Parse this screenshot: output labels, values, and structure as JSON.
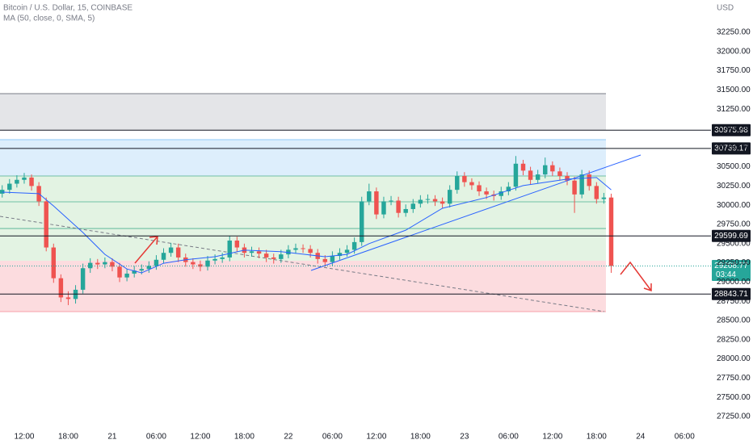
{
  "chart_data": {
    "type": "candlestick",
    "title": "Bitcoin / U.S. Dollar, 15, COINBASE",
    "indicator": "MA (50, close, 0, SMA, 5)",
    "currency": "USD",
    "up_color": "#26a69a",
    "down_color": "#ef5350",
    "xlim": [
      -3.3,
      92.5
    ],
    "ylim": [
      27103,
      32670
    ],
    "xticks": [
      {
        "value": 0,
        "label": "12:00"
      },
      {
        "value": 6,
        "label": "18:00"
      },
      {
        "value": 12,
        "label": "21"
      },
      {
        "value": 18,
        "label": "06:00"
      },
      {
        "value": 24,
        "label": "12:00"
      },
      {
        "value": 30,
        "label": "18:00"
      },
      {
        "value": 36,
        "label": "22"
      },
      {
        "value": 42,
        "label": "06:00"
      },
      {
        "value": 48,
        "label": "12:00"
      },
      {
        "value": 54,
        "label": "18:00"
      },
      {
        "value": 60,
        "label": "23"
      },
      {
        "value": 66,
        "label": "06:00"
      },
      {
        "value": 72,
        "label": "12:00"
      },
      {
        "value": 78,
        "label": "18:00"
      },
      {
        "value": 84,
        "label": "24"
      },
      {
        "value": 90,
        "label": "06:00"
      }
    ],
    "yticks": [
      {
        "value": 32250,
        "label": "32250.00"
      },
      {
        "value": 32000,
        "label": "32000.00"
      },
      {
        "value": 31750,
        "label": "31750.00"
      },
      {
        "value": 31500,
        "label": "31500.00"
      },
      {
        "value": 31250,
        "label": "31250.00"
      },
      {
        "value": 31000,
        "label": "31000.00"
      },
      {
        "value": 30750,
        "label": "30750.00"
      },
      {
        "value": 30500,
        "label": "30500.00"
      },
      {
        "value": 30250,
        "label": "30250.00"
      },
      {
        "value": 30000,
        "label": "30000.00"
      },
      {
        "value": 29750,
        "label": "29750.00"
      },
      {
        "value": 29500,
        "label": "29500.00"
      },
      {
        "value": 29250,
        "label": "29250.00"
      },
      {
        "value": 29000,
        "label": "29000.00"
      },
      {
        "value": 28750,
        "label": "28750.00"
      },
      {
        "value": 28500,
        "label": "28500.00"
      },
      {
        "value": 28250,
        "label": "28250.00"
      },
      {
        "value": 28000,
        "label": "28000.00"
      },
      {
        "value": 27750,
        "label": "27750.00"
      },
      {
        "value": 27500,
        "label": "27500.00"
      },
      {
        "value": 27250,
        "label": "27250.00"
      }
    ],
    "zones": [
      {
        "from": 31452,
        "to": 30976,
        "color": "#e4e5e8"
      },
      {
        "from": 30853,
        "to": 30380,
        "color": "#ddeefc"
      },
      {
        "from": 30380,
        "to": 29277,
        "color": "#e3f3e3"
      },
      {
        "from": 29277,
        "to": 28616,
        "color": "#fcdcdf"
      }
    ],
    "zone_lines": [
      30380,
      30044,
      29697
    ],
    "levels": [
      30975.98,
      30739.17,
      29599.69,
      28843.71
    ],
    "last_price": 29208.77,
    "countdown": "03:44",
    "x": [
      -3,
      -2,
      -1,
      0,
      1,
      2,
      3,
      4,
      5,
      6,
      7,
      8,
      9,
      10,
      11,
      12,
      13,
      14,
      15,
      16,
      17,
      18,
      19,
      20,
      21,
      22,
      23,
      24,
      25,
      26,
      27,
      28,
      29,
      30,
      31,
      32,
      33,
      34,
      35,
      36,
      37,
      38,
      39,
      40,
      41,
      42,
      43,
      44,
      45,
      46,
      47,
      48,
      49,
      50,
      51,
      52,
      53,
      54,
      55,
      56,
      57,
      58,
      59,
      60,
      61,
      62,
      63,
      64,
      65,
      66,
      67,
      68,
      69,
      70,
      71,
      72,
      73,
      74,
      75,
      76,
      77,
      78,
      79,
      80
    ],
    "open": [
      30150,
      30200,
      30280,
      30330,
      30360,
      30250,
      30050,
      29450,
      29050,
      28800,
      28780,
      28900,
      29180,
      29250,
      29230,
      29260,
      29200,
      29060,
      29110,
      29150,
      29170,
      29210,
      29290,
      29380,
      29450,
      29320,
      29260,
      29230,
      29200,
      29280,
      29300,
      29320,
      29540,
      29450,
      29380,
      29400,
      29370,
      29320,
      29300,
      29360,
      29420,
      29440,
      29430,
      29380,
      29300,
      29260,
      29340,
      29380,
      29420,
      29520,
      30050,
      30180,
      29880,
      30050,
      30060,
      29900,
      29950,
      30020,
      30070,
      30080,
      30050,
      30020,
      30200,
      30380,
      30300,
      30260,
      30180,
      30140,
      30120,
      30180,
      30240,
      30540,
      30450,
      30330,
      30400,
      30520,
      30440,
      30380,
      30320,
      30140,
      30400,
      30250,
      30080,
      30100
    ],
    "high": [
      30260,
      30340,
      30390,
      30420,
      30400,
      30300,
      30100,
      29500,
      29100,
      28880,
      28960,
      29240,
      29310,
      29300,
      29320,
      29310,
      29250,
      29170,
      29210,
      29230,
      29270,
      29350,
      29440,
      29510,
      29500,
      29370,
      29310,
      29280,
      29340,
      29360,
      29380,
      29600,
      29590,
      29500,
      29460,
      29450,
      29420,
      29370,
      29420,
      29480,
      29500,
      29490,
      29480,
      29430,
      29350,
      29400,
      29440,
      29480,
      29580,
      30110,
      30280,
      30230,
      30110,
      30120,
      30110,
      30010,
      30080,
      30130,
      30140,
      30130,
      30100,
      30260,
      30440,
      30430,
      30350,
      30310,
      30230,
      30190,
      30240,
      30300,
      30640,
      30590,
      30500,
      30460,
      30620,
      30570,
      30490,
      30430,
      30370,
      30460,
      30450,
      30300,
      30160,
      30150
    ],
    "low": [
      30100,
      30150,
      30230,
      30280,
      30190,
      29990,
      29400,
      28990,
      28740,
      28700,
      28720,
      28850,
      29120,
      29170,
      29180,
      29140,
      29000,
      29010,
      29060,
      29100,
      29120,
      29160,
      29240,
      29330,
      29260,
      29200,
      29170,
      29140,
      29150,
      29230,
      29250,
      29270,
      29390,
      29320,
      29330,
      29310,
      29260,
      29240,
      29250,
      29310,
      29370,
      29380,
      29320,
      29240,
      29200,
      29210,
      29290,
      29330,
      29370,
      29470,
      30000,
      29820,
      29830,
      30000,
      29840,
      29850,
      29900,
      29970,
      30020,
      29990,
      29960,
      29970,
      30150,
      30240,
      30200,
      30120,
      30080,
      30060,
      30070,
      30130,
      30190,
      30390,
      30270,
      30280,
      30350,
      30380,
      30320,
      30260,
      29900,
      30090,
      30190,
      30020,
      30020,
      29120
    ],
    "close": [
      30200,
      30280,
      30330,
      30360,
      30250,
      30050,
      29450,
      29050,
      28800,
      28780,
      28900,
      29180,
      29250,
      29230,
      29260,
      29200,
      29060,
      29110,
      29150,
      29170,
      29210,
      29290,
      29380,
      29450,
      29320,
      29260,
      29230,
      29200,
      29280,
      29300,
      29320,
      29540,
      29450,
      29380,
      29400,
      29370,
      29320,
      29300,
      29360,
      29420,
      29440,
      29430,
      29380,
      29300,
      29260,
      29340,
      29380,
      29420,
      29520,
      30050,
      30180,
      29880,
      30050,
      30060,
      29900,
      29950,
      30020,
      30070,
      30080,
      30050,
      30020,
      30200,
      30380,
      30300,
      30260,
      30180,
      30140,
      30120,
      30180,
      30240,
      30540,
      30450,
      30330,
      30400,
      30520,
      30440,
      30380,
      30320,
      30140,
      30400,
      30250,
      30080,
      30100,
      29208.77
    ],
    "ma": {
      "color": "#2962ff",
      "x": [
        -3,
        2,
        4,
        8,
        11,
        14,
        16,
        19,
        22,
        26,
        30,
        35,
        41,
        44,
        47,
        52,
        57,
        63,
        68,
        74,
        78,
        80
      ],
      "values": [
        30170,
        30150,
        29990,
        29645,
        29360,
        29170,
        29120,
        29245,
        29290,
        29330,
        29415,
        29395,
        29330,
        29360,
        29500,
        29675,
        29960,
        30100,
        30255,
        30340,
        30360,
        30200
      ]
    }
  }
}
